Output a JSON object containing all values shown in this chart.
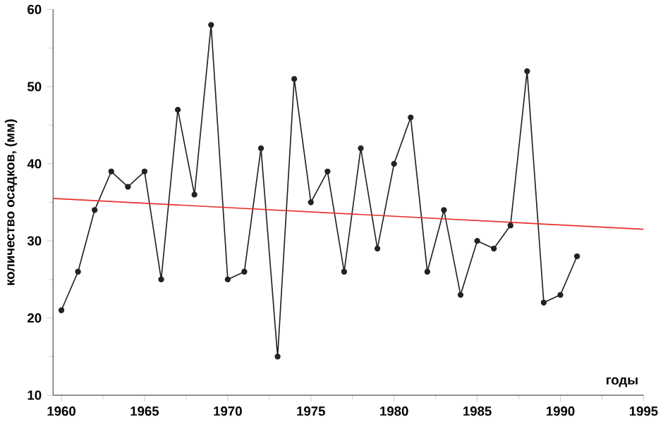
{
  "chart_data": {
    "type": "line",
    "xlabel": "годы",
    "ylabel": "количество осадков, (мм)",
    "xlim": [
      1959.5,
      1995
    ],
    "ylim": [
      10,
      60
    ],
    "xticks": [
      1960,
      1965,
      1970,
      1975,
      1980,
      1985,
      1990,
      1995
    ],
    "yticks": [
      10,
      20,
      30,
      40,
      50,
      60
    ],
    "grid": false,
    "series": [
      {
        "color": "#222222",
        "marker": "circle",
        "x": [
          1960,
          1961,
          1962,
          1963,
          1964,
          1965,
          1966,
          1967,
          1968,
          1969,
          1970,
          1971,
          1972,
          1973,
          1974,
          1975,
          1976,
          1977,
          1978,
          1979,
          1980,
          1981,
          1982,
          1983,
          1984,
          1985,
          1986,
          1987,
          1988,
          1989,
          1990,
          1991
        ],
        "values": [
          21,
          26,
          34,
          39,
          37,
          39,
          25,
          47,
          36,
          58,
          25,
          26,
          42,
          15,
          51,
          35,
          39,
          26,
          42,
          29,
          40,
          46,
          26,
          34,
          23,
          30,
          29,
          32,
          52,
          22,
          23,
          28
        ]
      },
      {
        "color": "#e8302c",
        "marker": "none",
        "x": [
          1959.5,
          1995
        ],
        "values": [
          35.5,
          31.5
        ]
      }
    ]
  }
}
